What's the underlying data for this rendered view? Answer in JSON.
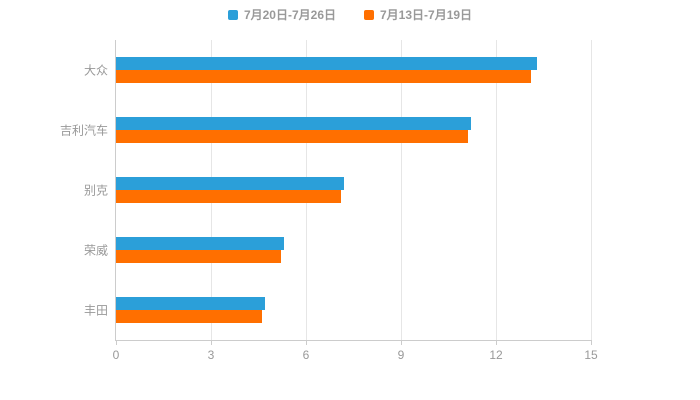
{
  "chart_data": {
    "type": "bar",
    "orientation": "horizontal",
    "title": "",
    "xlabel": "",
    "ylabel": "",
    "categories": [
      "大众",
      "吉利汽车",
      "别克",
      "荣威",
      "丰田"
    ],
    "series": [
      {
        "name": "7月20日-7月26日",
        "color": "#2b9fd9",
        "values": [
          13.3,
          11.2,
          7.2,
          5.3,
          4.7
        ]
      },
      {
        "name": "7月13日-7月19日",
        "color": "#ff6f00",
        "values": [
          13.1,
          11.1,
          7.1,
          5.2,
          4.6
        ]
      }
    ],
    "xlim": [
      0,
      15
    ],
    "xticks": [
      0,
      3,
      6,
      9,
      12,
      15
    ],
    "grid": true,
    "legend_position": "top",
    "colors": {
      "axis_line": "#cccccc",
      "grid_line": "#e6e6e6",
      "text": "#999999",
      "background": "#ffffff"
    }
  }
}
